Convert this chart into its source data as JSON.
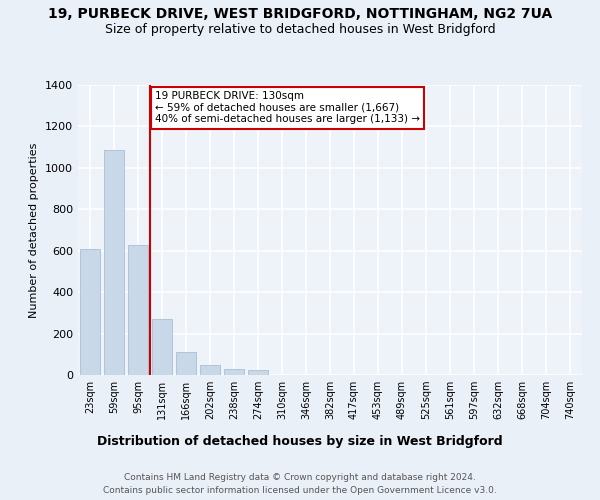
{
  "title1": "19, PURBECK DRIVE, WEST BRIDGFORD, NOTTINGHAM, NG2 7UA",
  "title2": "Size of property relative to detached houses in West Bridgford",
  "xlabel": "Distribution of detached houses by size in West Bridgford",
  "ylabel": "Number of detached properties",
  "footer1": "Contains HM Land Registry data © Crown copyright and database right 2024.",
  "footer2": "Contains public sector information licensed under the Open Government Licence v3.0.",
  "categories": [
    "23sqm",
    "59sqm",
    "95sqm",
    "131sqm",
    "166sqm",
    "202sqm",
    "238sqm",
    "274sqm",
    "310sqm",
    "346sqm",
    "382sqm",
    "417sqm",
    "453sqm",
    "489sqm",
    "525sqm",
    "561sqm",
    "597sqm",
    "632sqm",
    "668sqm",
    "704sqm",
    "740sqm"
  ],
  "values": [
    610,
    1085,
    630,
    270,
    110,
    50,
    30,
    25,
    0,
    0,
    0,
    0,
    0,
    0,
    0,
    0,
    0,
    0,
    0,
    0,
    0
  ],
  "bar_color": "#c8d8e8",
  "bar_edge_color": "#a0b8cc",
  "vline_x": 2.5,
  "vline_color": "#cc0000",
  "annotation_line1": "19 PURBECK DRIVE: 130sqm",
  "annotation_line2": "← 59% of detached houses are smaller (1,667)",
  "annotation_line3": "40% of semi-detached houses are larger (1,133) →",
  "annotation_box_color": "#cc0000",
  "annotation_box_bg": "#ffffff",
  "ylim": [
    0,
    1400
  ],
  "yticks": [
    0,
    200,
    400,
    600,
    800,
    1000,
    1200,
    1400
  ],
  "bg_color": "#eaf0f8",
  "plot_bg_color": "#eef3fa",
  "grid_color": "#ffffff",
  "title1_fontsize": 10,
  "title2_fontsize": 9
}
